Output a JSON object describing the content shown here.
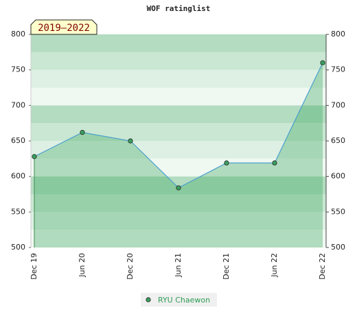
{
  "chart_data": {
    "type": "line",
    "title": "WOF ratinglist",
    "annotation": "2019–2022",
    "categories": [
      "Dec 19",
      "Jun 20",
      "Dec 20",
      "Jun 21",
      "Dec 21",
      "Jun 22",
      "Dec 22"
    ],
    "series": [
      {
        "name": "RYU Chaewon",
        "color": "#4a9fd0",
        "values": [
          628,
          662,
          650,
          584,
          619,
          619,
          760
        ]
      }
    ],
    "ylim": [
      500,
      800
    ],
    "yticks": [
      500,
      550,
      600,
      650,
      700,
      750,
      800
    ],
    "y2lim": [
      500,
      800
    ],
    "y2ticks": [
      500,
      550,
      600,
      650,
      700,
      750,
      800
    ]
  }
}
